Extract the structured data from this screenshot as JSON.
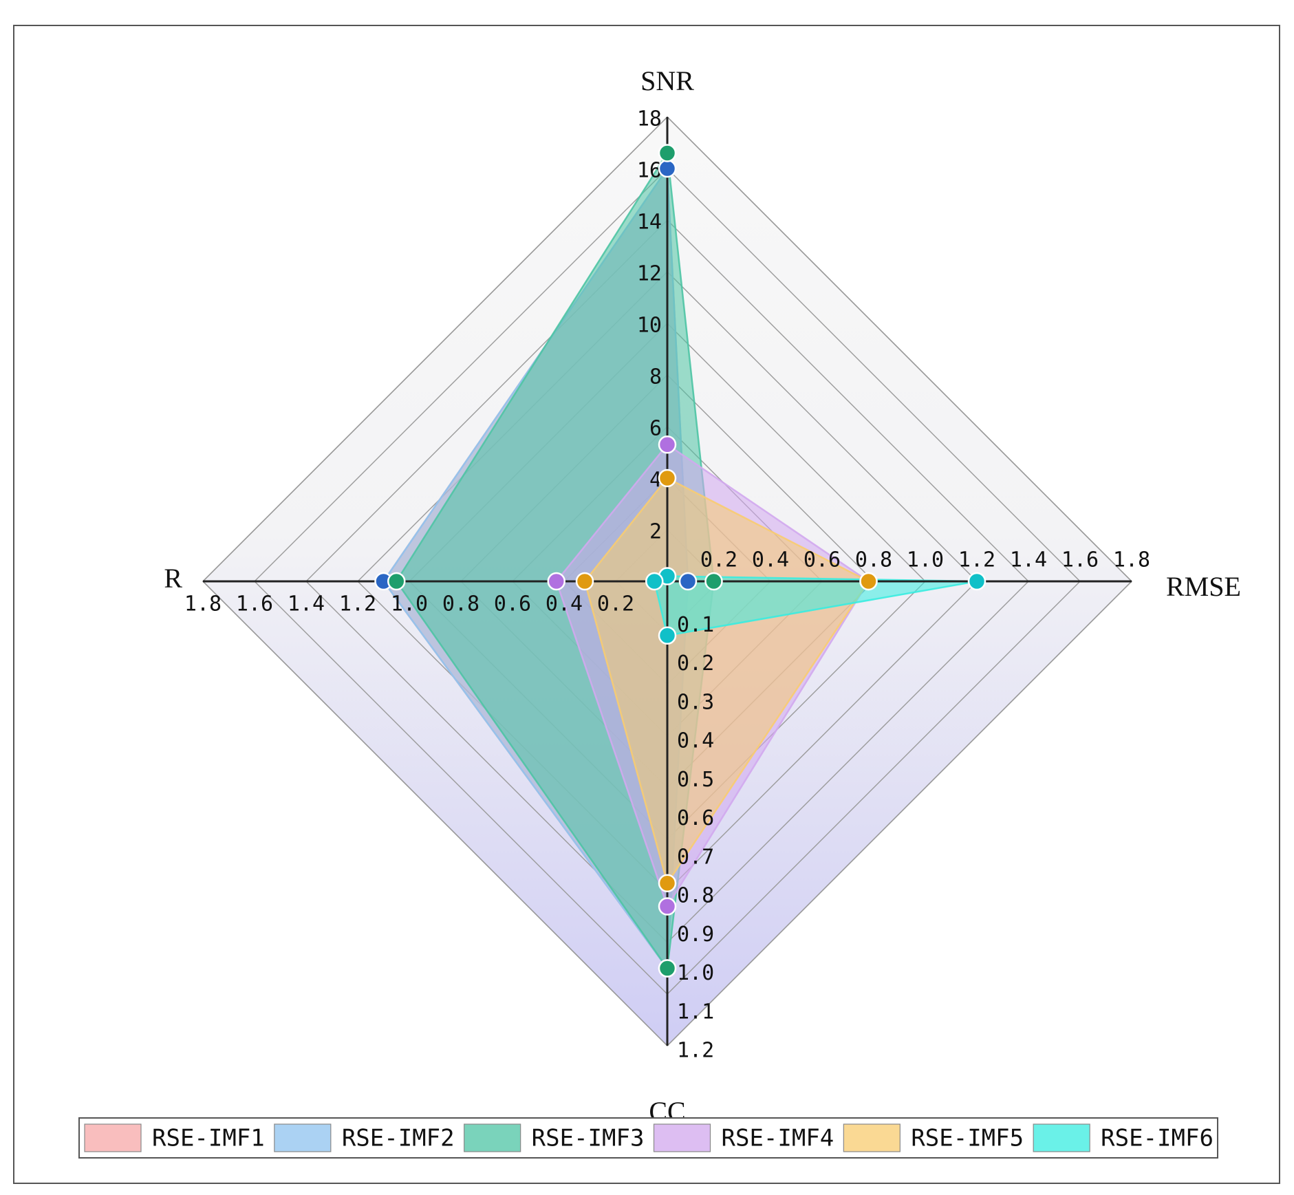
{
  "chart_data": {
    "type": "radar",
    "axes": [
      {
        "name": "SNR",
        "min": 0,
        "max": 18,
        "ticks": [
          "0",
          "2",
          "4",
          "6",
          "8",
          "10",
          "12",
          "14",
          "16",
          "18"
        ]
      },
      {
        "name": "RMSE",
        "min": 0,
        "max": 1.8,
        "ticks": [
          "0",
          "0.2",
          "0.4",
          "0.6",
          "0.8",
          "1.0",
          "1.2",
          "1.4",
          "1.6",
          "1.8"
        ]
      },
      {
        "name": "CC",
        "min": 0,
        "max": 1.2,
        "ticks": [
          "0",
          "0.1",
          "0.2",
          "0.3",
          "0.4",
          "0.5",
          "0.6",
          "0.7",
          "0.8",
          "0.9",
          "1.0",
          "1.1",
          "1.2"
        ]
      },
      {
        "name": "R",
        "min": 0,
        "max": 1.8,
        "ticks": [
          "0",
          "0.2",
          "0.4",
          "0.6",
          "0.8",
          "1.0",
          "1.2",
          "1.4",
          "1.6",
          "1.8"
        ]
      }
    ],
    "axis_order": [
      "SNR",
      "RMSE",
      "CC",
      "R"
    ],
    "series": [
      {
        "name": "RSE-IMF1",
        "values": [
          16.0,
          0.08,
          1.0,
          1.1
        ],
        "color": "#f7a8a8",
        "marker": "#e06c6c",
        "show_markers": false
      },
      {
        "name": "RSE-IMF2",
        "values": [
          16.0,
          0.08,
          1.0,
          1.1
        ],
        "color": "#8fc3ef",
        "marker": "#2a66c4",
        "show_markers": true
      },
      {
        "name": "RSE-IMF3",
        "values": [
          16.6,
          0.18,
          1.0,
          1.05
        ],
        "color": "#4ec4a4",
        "marker": "#1e9e6c",
        "show_markers": true
      },
      {
        "name": "RSE-IMF4",
        "values": [
          5.3,
          0.78,
          0.84,
          0.43
        ],
        "color": "#d2a8ee",
        "marker": "#b070e0",
        "show_markers": true
      },
      {
        "name": "RSE-IMF5",
        "values": [
          4.0,
          0.78,
          0.78,
          0.32
        ],
        "color": "#f8cc70",
        "marker": "#e09a10",
        "show_markers": true
      },
      {
        "name": "RSE-IMF6",
        "values": [
          0.2,
          1.2,
          0.14,
          0.05
        ],
        "color": "#38ece0",
        "marker": "#10c0c8",
        "show_markers": true
      }
    ],
    "legend_position": "bottom",
    "grid": true
  }
}
